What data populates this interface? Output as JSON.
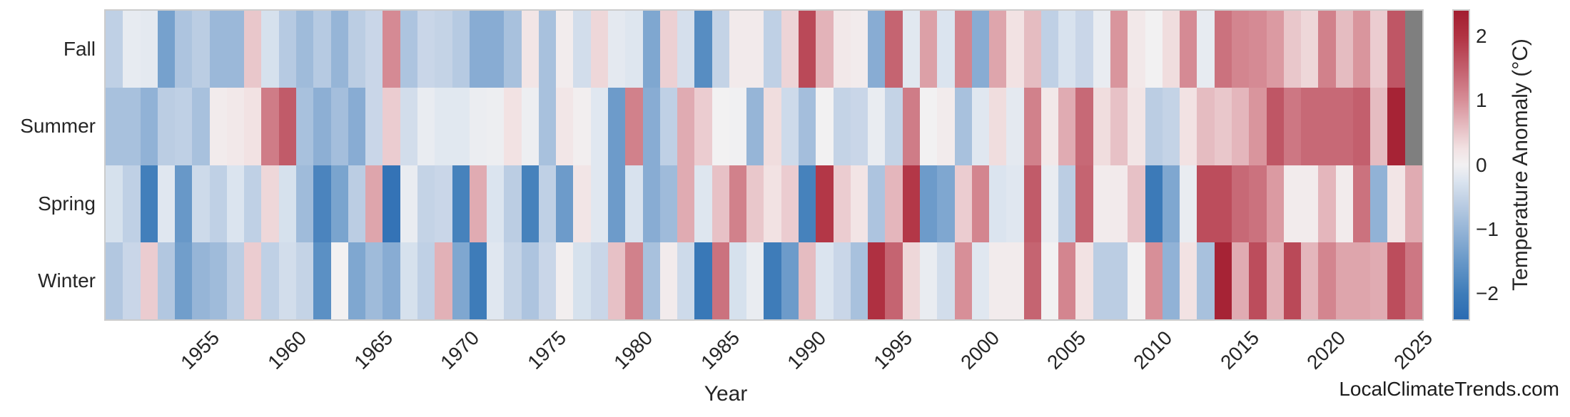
{
  "page": {
    "background": "#ffffff",
    "watermark": "LocalClimateTrends.com"
  },
  "chart_data": {
    "type": "heatmap",
    "title": "",
    "xlabel": "Year",
    "ylabel": "",
    "colorbar_label": "Temperature Anomaly (°C)",
    "colorbar_ticks": [
      {
        "label": "2",
        "value": 2
      },
      {
        "label": "1",
        "value": 1
      },
      {
        "label": "0",
        "value": 0
      },
      {
        "label": "−1",
        "value": -1
      },
      {
        "label": "−2",
        "value": -2
      }
    ],
    "vmin": -2.4,
    "vmax": 2.4,
    "legend_position": "right",
    "grid": false,
    "missing_color": "#7f7f7f",
    "colormap_stops": [
      [
        -2.4,
        "#2b6bb2"
      ],
      [
        -2.0,
        "#3e7cb9"
      ],
      [
        -1.5,
        "#6898c8"
      ],
      [
        -1.0,
        "#96b5d7"
      ],
      [
        -0.5,
        "#c4d3e6"
      ],
      [
        -0.25,
        "#dbe4ef"
      ],
      [
        0.0,
        "#f2f1f2"
      ],
      [
        0.25,
        "#f2e2e3"
      ],
      [
        0.5,
        "#e9c7cb"
      ],
      [
        1.0,
        "#d78f98"
      ],
      [
        1.5,
        "#c35f6d"
      ],
      [
        2.0,
        "#b13343"
      ],
      [
        2.4,
        "#a21e30"
      ]
    ],
    "rows": [
      "Fall",
      "Summer",
      "Spring",
      "Winter"
    ],
    "years": [
      1950,
      1951,
      1952,
      1953,
      1954,
      1955,
      1956,
      1957,
      1958,
      1959,
      1960,
      1961,
      1962,
      1963,
      1964,
      1965,
      1966,
      1967,
      1968,
      1969,
      1970,
      1971,
      1972,
      1973,
      1974,
      1975,
      1976,
      1977,
      1978,
      1979,
      1980,
      1981,
      1982,
      1983,
      1984,
      1985,
      1986,
      1987,
      1988,
      1989,
      1990,
      1991,
      1992,
      1993,
      1994,
      1995,
      1996,
      1997,
      1998,
      1999,
      2000,
      2001,
      2002,
      2003,
      2004,
      2005,
      2006,
      2007,
      2008,
      2009,
      2010,
      2011,
      2012,
      2013,
      2014,
      2015,
      2016,
      2017,
      2018,
      2019,
      2020,
      2021,
      2022,
      2023,
      2024,
      2025
    ],
    "x_tick_years": [
      1955,
      1960,
      1965,
      1970,
      1975,
      1980,
      1985,
      1990,
      1995,
      2000,
      2005,
      2010,
      2015,
      2020,
      2025
    ],
    "series": [
      {
        "name": "Fall",
        "values": [
          -0.55,
          -0.12,
          -0.15,
          -1.35,
          -0.75,
          -0.6,
          -0.95,
          -0.95,
          0.5,
          -0.3,
          -0.65,
          -0.9,
          -0.65,
          -1.0,
          -0.6,
          -0.45,
          1.05,
          -0.75,
          -0.45,
          -0.5,
          -0.65,
          -1.15,
          -1.15,
          -0.8,
          0.2,
          -0.8,
          0.08,
          -0.35,
          0.35,
          -0.15,
          -0.22,
          -1.25,
          0.42,
          -0.32,
          -1.7,
          -0.5,
          0.12,
          0.12,
          -0.55,
          0.38,
          1.75,
          0.68,
          0.15,
          0.1,
          -1.15,
          1.45,
          -0.18,
          0.85,
          -0.25,
          1.1,
          -1.15,
          0.8,
          0.25,
          0.6,
          -0.55,
          -0.28,
          -0.45,
          -0.1,
          0.95,
          0.15,
          0.0,
          0.3,
          1.05,
          -0.12,
          1.3,
          1.1,
          1.05,
          0.9,
          0.5,
          0.35,
          1.15,
          0.6,
          0.95,
          0.45,
          1.6,
          null
        ]
      },
      {
        "name": "Summer",
        "values": [
          -0.8,
          -0.8,
          -1.05,
          -0.6,
          -0.55,
          -0.8,
          0.1,
          0.15,
          0.25,
          1.2,
          1.55,
          -0.8,
          -1.1,
          -0.85,
          -1.15,
          -0.45,
          0.45,
          -0.35,
          -0.1,
          -0.18,
          -0.18,
          -0.08,
          -0.05,
          0.25,
          -0.05,
          -0.8,
          0.18,
          0.05,
          -0.2,
          -1.45,
          1.15,
          -1.15,
          -0.55,
          0.75,
          0.45,
          0.0,
          -0.02,
          -1.0,
          0.3,
          -0.4,
          -0.85,
          0.0,
          -0.5,
          -0.45,
          -0.1,
          -0.5,
          1.2,
          0.0,
          0.1,
          -0.8,
          -0.2,
          0.3,
          -0.15,
          1.15,
          0.15,
          0.75,
          1.4,
          0.3,
          0.55,
          0.2,
          -0.6,
          -0.5,
          0.25,
          0.6,
          0.5,
          0.65,
          0.95,
          1.6,
          1.25,
          1.4,
          1.4,
          1.4,
          1.5,
          0.6,
          2.3,
          null
        ]
      },
      {
        "name": "Spring",
        "values": [
          -0.3,
          -0.55,
          -1.95,
          -0.2,
          -1.5,
          -0.4,
          -0.55,
          -0.25,
          -0.55,
          0.35,
          -0.3,
          -0.9,
          -1.85,
          -1.3,
          -0.6,
          0.8,
          -2.2,
          -0.1,
          -0.5,
          -0.45,
          -1.9,
          0.75,
          -0.25,
          -0.6,
          -1.9,
          -0.55,
          -1.45,
          0.2,
          -0.2,
          -1.45,
          -0.28,
          -1.15,
          -0.9,
          0.75,
          -0.22,
          0.55,
          1.15,
          0.5,
          0.25,
          0.45,
          -1.9,
          1.95,
          0.45,
          0.22,
          -0.75,
          0.65,
          1.95,
          -1.45,
          -1.25,
          0.45,
          1.1,
          -0.25,
          -0.2,
          1.55,
          -0.1,
          -0.6,
          1.45,
          0.1,
          0.12,
          0.55,
          -2.05,
          -1.25,
          -0.1,
          1.7,
          1.7,
          1.4,
          1.3,
          0.9,
          0.1,
          0.1,
          0.65,
          0.1,
          1.3,
          -1.05,
          0.2,
          0.75
        ]
      },
      {
        "name": "Winter",
        "values": [
          -0.7,
          -0.45,
          0.45,
          -0.7,
          -1.4,
          -1.0,
          -0.9,
          -0.6,
          0.45,
          -0.55,
          -0.35,
          -0.5,
          -1.65,
          0.0,
          -1.25,
          -0.9,
          -1.15,
          -0.3,
          -0.55,
          0.7,
          -1.25,
          -2.0,
          -0.2,
          -0.5,
          -0.75,
          -0.45,
          0.05,
          -0.3,
          -0.45,
          0.55,
          1.15,
          -0.8,
          0.1,
          -0.4,
          -2.1,
          1.3,
          -0.3,
          -0.1,
          -2.0,
          -1.45,
          0.6,
          -0.25,
          -0.45,
          -0.8,
          2.05,
          1.45,
          0.35,
          -0.1,
          -0.35,
          1.0,
          -0.2,
          0.1,
          0.1,
          1.45,
          0.0,
          1.1,
          0.25,
          -0.6,
          -0.6,
          0.0,
          1.0,
          -1.05,
          0.25,
          -0.8,
          2.3,
          0.75,
          1.7,
          0.7,
          1.75,
          0.65,
          1.1,
          0.8,
          0.8,
          0.75,
          1.7,
          1.25
        ]
      }
    ]
  }
}
